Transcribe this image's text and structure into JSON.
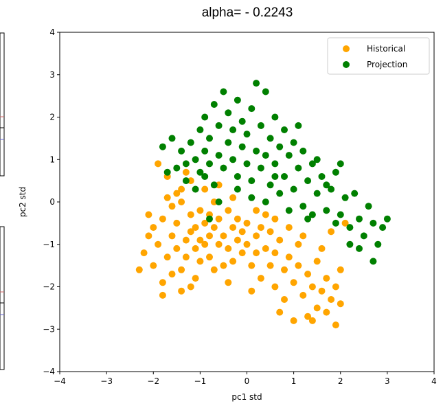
{
  "chart_data": {
    "type": "scatter",
    "title": "alpha= - 0.2243",
    "xlabel": "pc1 std",
    "ylabel": "pc2 std",
    "xlim": [
      -4,
      4
    ],
    "ylim": [
      -4,
      4
    ],
    "xticks": [
      -4,
      -3,
      -2,
      -1,
      0,
      1,
      2,
      3,
      4
    ],
    "yticks": [
      -4,
      -3,
      -2,
      -1,
      0,
      1,
      2,
      3,
      4
    ],
    "xtick_labels": [
      "−4",
      "−3",
      "−2",
      "−1",
      "0",
      "1",
      "2",
      "3",
      "4"
    ],
    "ytick_labels": [
      "−4",
      "−3",
      "−2",
      "−1",
      "0",
      "1",
      "2",
      "3",
      "4"
    ],
    "grid": false,
    "legend_position": "top-right",
    "series": [
      {
        "name": "Historical",
        "color": "#ffa500",
        "points": [
          [
            -2.3,
            -1.6
          ],
          [
            -2.2,
            -1.2
          ],
          [
            -2.1,
            -0.8
          ],
          [
            -2.0,
            -1.5
          ],
          [
            -1.9,
            -1.0
          ],
          [
            -1.8,
            -1.9
          ],
          [
            -1.8,
            -0.4
          ],
          [
            -1.7,
            -1.3
          ],
          [
            -1.7,
            0.1
          ],
          [
            -1.6,
            -0.8
          ],
          [
            -1.6,
            -1.7
          ],
          [
            -1.5,
            -0.5
          ],
          [
            -1.5,
            -1.1
          ],
          [
            -1.4,
            -1.6
          ],
          [
            -1.4,
            -2.1
          ],
          [
            -1.4,
            0.3
          ],
          [
            -1.3,
            -0.9
          ],
          [
            -1.3,
            -1.3
          ],
          [
            -1.2,
            -0.3
          ],
          [
            -1.2,
            -0.7
          ],
          [
            -1.2,
            0.5
          ],
          [
            -1.1,
            -1.1
          ],
          [
            -1.1,
            -0.6
          ],
          [
            -1.0,
            -0.2
          ],
          [
            -1.0,
            -0.9
          ],
          [
            -1.0,
            -1.4
          ],
          [
            -0.9,
            -0.5
          ],
          [
            -0.9,
            -1.0
          ],
          [
            -0.8,
            -0.3
          ],
          [
            -0.8,
            -0.8
          ],
          [
            -0.8,
            -1.3
          ],
          [
            -0.7,
            -0.6
          ],
          [
            -0.7,
            0.0
          ],
          [
            -0.6,
            -1.0
          ],
          [
            -0.6,
            -0.4
          ],
          [
            -0.5,
            -0.8
          ],
          [
            -0.5,
            -1.5
          ],
          [
            -0.4,
            -0.2
          ],
          [
            -0.4,
            -1.1
          ],
          [
            -0.3,
            -0.6
          ],
          [
            -0.3,
            -1.4
          ],
          [
            -0.2,
            -0.9
          ],
          [
            -0.2,
            -0.4
          ],
          [
            -0.1,
            -1.2
          ],
          [
            -0.1,
            -0.7
          ],
          [
            0.0,
            -0.5
          ],
          [
            0.0,
            -1.0
          ],
          [
            0.1,
            -1.5
          ],
          [
            0.2,
            -0.8
          ],
          [
            0.2,
            -1.2
          ],
          [
            0.3,
            -0.6
          ],
          [
            0.3,
            -1.8
          ],
          [
            0.4,
            -1.1
          ],
          [
            0.5,
            -0.7
          ],
          [
            0.5,
            -1.5
          ],
          [
            0.6,
            -1.2
          ],
          [
            0.6,
            -2.0
          ],
          [
            0.7,
            -0.9
          ],
          [
            0.8,
            -1.6
          ],
          [
            0.8,
            -2.3
          ],
          [
            0.9,
            -1.3
          ],
          [
            1.0,
            -1.9
          ],
          [
            1.0,
            -2.8
          ],
          [
            1.1,
            -1.5
          ],
          [
            1.2,
            -2.2
          ],
          [
            1.3,
            -1.7
          ],
          [
            1.3,
            -2.7
          ],
          [
            1.4,
            -2.0
          ],
          [
            1.5,
            -1.4
          ],
          [
            1.5,
            -2.5
          ],
          [
            1.6,
            -2.1
          ],
          [
            1.7,
            -2.6
          ],
          [
            1.7,
            -1.8
          ],
          [
            1.8,
            -2.3
          ],
          [
            1.9,
            -2.9
          ],
          [
            1.9,
            -2.0
          ],
          [
            2.0,
            -2.4
          ],
          [
            2.0,
            -1.6
          ],
          [
            -1.9,
            0.9
          ],
          [
            -1.7,
            0.6
          ],
          [
            -1.5,
            0.2
          ],
          [
            -1.3,
            0.7
          ],
          [
            -0.6,
            0.4
          ],
          [
            0.2,
            -0.2
          ],
          [
            -2.1,
            -0.3
          ],
          [
            -1.6,
            -0.1
          ],
          [
            -1.1,
            -1.8
          ],
          [
            -0.7,
            -1.6
          ],
          [
            0.4,
            -0.3
          ],
          [
            0.9,
            -0.6
          ],
          [
            1.1,
            -1.0
          ],
          [
            1.6,
            -1.1
          ],
          [
            1.8,
            -0.7
          ],
          [
            2.1,
            -0.5
          ],
          [
            -0.9,
            0.3
          ],
          [
            -0.3,
            0.1
          ],
          [
            0.6,
            -0.4
          ],
          [
            1.2,
            -0.8
          ],
          [
            -1.8,
            -2.2
          ],
          [
            -1.2,
            -2.0
          ],
          [
            0.1,
            -2.1
          ],
          [
            0.7,
            -2.6
          ],
          [
            1.4,
            -2.8
          ],
          [
            -0.4,
            -1.9
          ],
          [
            -2.0,
            -0.6
          ],
          [
            -1.4,
            0.0
          ]
        ]
      },
      {
        "name": "Projection",
        "color": "#008000",
        "points": [
          [
            -1.8,
            1.3
          ],
          [
            -1.6,
            1.5
          ],
          [
            -1.5,
            0.8
          ],
          [
            -1.4,
            1.2
          ],
          [
            -1.3,
            0.5
          ],
          [
            -1.2,
            1.4
          ],
          [
            -1.1,
            1.0
          ],
          [
            -1.0,
            1.7
          ],
          [
            -1.0,
            0.7
          ],
          [
            -0.9,
            1.2
          ],
          [
            -0.9,
            2.0
          ],
          [
            -0.8,
            0.9
          ],
          [
            -0.8,
            1.5
          ],
          [
            -0.7,
            2.3
          ],
          [
            -0.7,
            0.4
          ],
          [
            -0.6,
            1.1
          ],
          [
            -0.6,
            1.8
          ],
          [
            -0.5,
            2.6
          ],
          [
            -0.5,
            0.8
          ],
          [
            -0.4,
            1.4
          ],
          [
            -0.4,
            2.1
          ],
          [
            -0.3,
            1.0
          ],
          [
            -0.3,
            1.7
          ],
          [
            -0.2,
            0.6
          ],
          [
            -0.2,
            2.4
          ],
          [
            -0.1,
            1.3
          ],
          [
            -0.1,
            1.9
          ],
          [
            0.0,
            0.9
          ],
          [
            0.0,
            1.6
          ],
          [
            0.1,
            2.2
          ],
          [
            0.1,
            0.5
          ],
          [
            0.2,
            1.2
          ],
          [
            0.2,
            2.8
          ],
          [
            0.3,
            0.8
          ],
          [
            0.3,
            1.8
          ],
          [
            0.4,
            2.6
          ],
          [
            0.4,
            1.1
          ],
          [
            0.5,
            0.4
          ],
          [
            0.5,
            1.5
          ],
          [
            0.6,
            2.0
          ],
          [
            0.6,
            0.9
          ],
          [
            0.7,
            1.3
          ],
          [
            0.7,
            0.2
          ],
          [
            0.8,
            1.7
          ],
          [
            0.8,
            0.6
          ],
          [
            0.9,
            1.1
          ],
          [
            1.0,
            0.3
          ],
          [
            1.0,
            1.4
          ],
          [
            1.1,
            0.8
          ],
          [
            1.2,
            -0.1
          ],
          [
            1.2,
            1.2
          ],
          [
            1.3,
            0.5
          ],
          [
            1.4,
            0.9
          ],
          [
            1.4,
            -0.3
          ],
          [
            1.5,
            0.2
          ],
          [
            1.6,
            0.6
          ],
          [
            1.7,
            -0.2
          ],
          [
            1.8,
            0.3
          ],
          [
            1.9,
            0.7
          ],
          [
            2.0,
            -0.3
          ],
          [
            2.1,
            0.1
          ],
          [
            2.2,
            -0.6
          ],
          [
            2.3,
            0.2
          ],
          [
            2.4,
            -0.4
          ],
          [
            2.5,
            -0.8
          ],
          [
            2.6,
            -0.1
          ],
          [
            2.7,
            -0.5
          ],
          [
            2.8,
            -1.0
          ],
          [
            2.9,
            -0.6
          ],
          [
            3.0,
            -0.4
          ],
          [
            2.7,
            -1.4
          ],
          [
            2.4,
            -1.1
          ],
          [
            2.2,
            -1.0
          ],
          [
            -1.7,
            0.7
          ],
          [
            -1.1,
            0.3
          ],
          [
            -0.6,
            0.0
          ],
          [
            -0.8,
            -0.4
          ],
          [
            0.1,
            0.1
          ],
          [
            0.9,
            -0.2
          ],
          [
            1.7,
            0.4
          ],
          [
            2.0,
            0.9
          ],
          [
            1.5,
            1.0
          ],
          [
            -0.2,
            0.3
          ],
          [
            0.4,
            0.0
          ],
          [
            1.1,
            1.8
          ],
          [
            -0.9,
            0.6
          ],
          [
            -1.3,
            0.9
          ],
          [
            0.6,
            0.6
          ],
          [
            1.3,
            -0.4
          ],
          [
            1.9,
            -0.5
          ]
        ]
      }
    ]
  }
}
